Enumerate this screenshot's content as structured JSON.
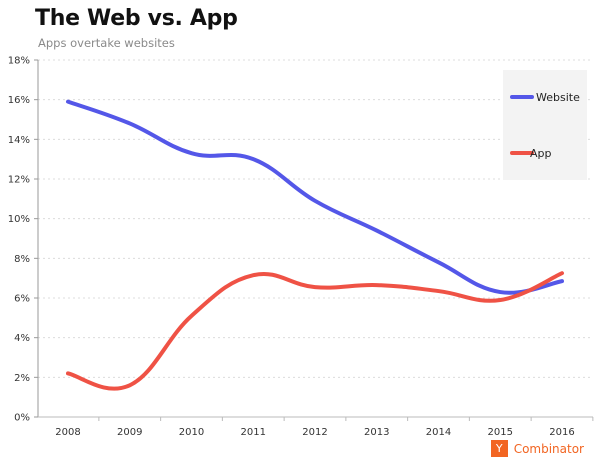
{
  "chart_data": {
    "type": "line",
    "title": "The Web vs. App",
    "subtitle": "Apps overtake websites",
    "xlabel": "",
    "ylabel": "",
    "x": [
      "2008",
      "2009",
      "2010",
      "2011",
      "2012",
      "2013",
      "2014",
      "2015",
      "2016"
    ],
    "ylim": [
      0,
      18
    ],
    "yticks": [
      0,
      2,
      4,
      6,
      8,
      10,
      12,
      14,
      16,
      18
    ],
    "ytick_labels": [
      "0%",
      "2%",
      "4%",
      "6%",
      "8%",
      "10%",
      "12%",
      "14%",
      "16%",
      "18%"
    ],
    "grid": true,
    "legend_position": "top-right",
    "series": [
      {
        "name": "Website",
        "color": "#5457e8",
        "values": [
          15.9,
          14.8,
          13.3,
          13.0,
          10.9,
          9.4,
          7.8,
          6.3,
          6.85
        ]
      },
      {
        "name": "App",
        "color": "#ef5245",
        "values": [
          2.2,
          1.6,
          5.1,
          7.15,
          6.55,
          6.65,
          6.35,
          5.9,
          7.25
        ]
      }
    ]
  },
  "footer": {
    "logo_letter": "Y",
    "brand": "Combinator",
    "brand_color": "#f26522"
  }
}
